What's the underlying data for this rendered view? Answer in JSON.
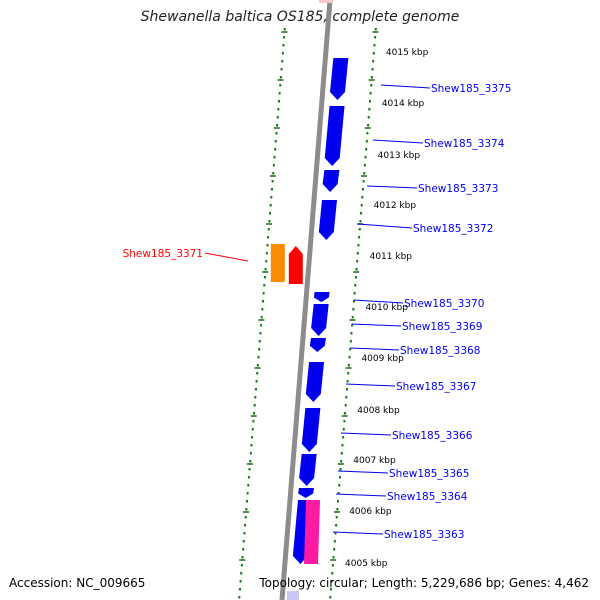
{
  "title": "Shewanella baltica OS185, complete genome",
  "footer": {
    "accession": "Accession: NC_009665",
    "summary": "Topology: circular; Length: 5,229,686 bp; Genes: 4,462"
  },
  "colors": {
    "backbone": "#8c8c8c",
    "ruler": "#1a7a1a",
    "forward_gene": "#ff0000",
    "reverse_gene": "#0000ee",
    "rna": "#ff8c00",
    "other": "#ff1aa3",
    "faded_forward": "#f7c8c8",
    "faded_reverse": "#c8c8f2"
  },
  "kbp_ticks": [
    "4015 kbp",
    "4014 kbp",
    "4013 kbp",
    "4012 kbp",
    "4011 kbp",
    "4010 kbp",
    "4009 kbp",
    "4008 kbp",
    "4007 kbp",
    "4006 kbp",
    "4005 kbp"
  ],
  "gene_labels": [
    {
      "text": "Shew185_3375",
      "strand": "reverse"
    },
    {
      "text": "Shew185_3374",
      "strand": "reverse"
    },
    {
      "text": "Shew185_3373",
      "strand": "reverse"
    },
    {
      "text": "Shew185_3372",
      "strand": "reverse"
    },
    {
      "text": "Shew185_3371",
      "strand": "forward"
    },
    {
      "text": "Shew185_3370",
      "strand": "reverse"
    },
    {
      "text": "Shew185_3369",
      "strand": "reverse"
    },
    {
      "text": "Shew185_3368",
      "strand": "reverse"
    },
    {
      "text": "Shew185_3367",
      "strand": "reverse"
    },
    {
      "text": "Shew185_3366",
      "strand": "reverse"
    },
    {
      "text": "Shew185_3365",
      "strand": "reverse"
    },
    {
      "text": "Shew185_3364",
      "strand": "reverse"
    },
    {
      "text": "Shew185_3363",
      "strand": "reverse"
    }
  ]
}
